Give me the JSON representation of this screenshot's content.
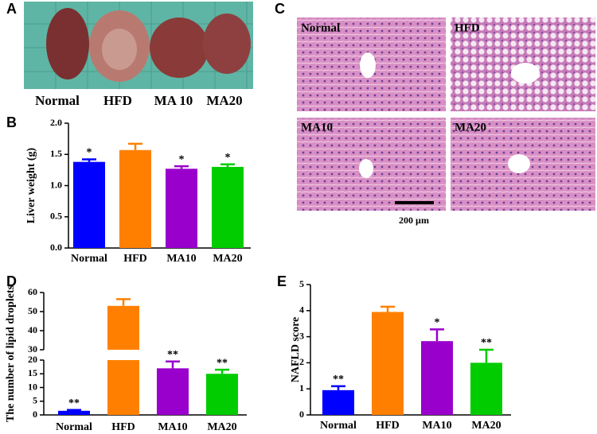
{
  "photo_a": {
    "panel": "A",
    "captions": [
      "Normal",
      "HFD",
      "MA 10",
      "MA20"
    ]
  },
  "micrograph_c": {
    "panel": "C",
    "captions": [
      "Normal",
      "HFD",
      "MA10",
      "MA20"
    ],
    "scale_bar": "200 µm"
  },
  "chart_data": [
    {
      "type": "bar",
      "panel": "B",
      "ylabel": "Liver weight (g)",
      "categories": [
        "Normal",
        "HFD",
        "MA10",
        "MA20"
      ],
      "values": [
        1.38,
        1.57,
        1.27,
        1.3
      ],
      "errors": [
        0.04,
        0.1,
        0.04,
        0.04
      ],
      "annotations": [
        "*",
        null,
        "*",
        "*"
      ],
      "colors": [
        "#0000ff",
        "#ff8000",
        "#9900cc",
        "#00cc00"
      ],
      "ylim": [
        0,
        2
      ],
      "yticks": [
        {
          "value": 0,
          "label": "0.0"
        },
        {
          "value": 0.5,
          "label": "0.5"
        },
        {
          "value": 1,
          "label": "1.0"
        },
        {
          "value": 1.5,
          "label": "1.5"
        },
        {
          "value": 2,
          "label": "2.0"
        }
      ]
    },
    {
      "type": "bar",
      "panel": "D",
      "ylabel": "The number of lipid droplets",
      "categories": [
        "Normal",
        "HFD",
        "MA10",
        "MA20"
      ],
      "values": [
        1.5,
        53,
        17,
        15
      ],
      "errors": [
        0.3,
        3.5,
        2.5,
        1.5
      ],
      "annotations": [
        "**",
        null,
        "**",
        "**"
      ],
      "colors": [
        "#0000ff",
        "#ff8000",
        "#9900cc",
        "#00cc00"
      ],
      "ylim": [
        0,
        60
      ],
      "axis_break": [
        20,
        30
      ],
      "yticks": [
        0,
        5,
        10,
        15,
        20,
        30,
        40,
        50,
        60
      ]
    },
    {
      "type": "bar",
      "panel": "E",
      "ylabel": "NAFLD score",
      "categories": [
        "Normal",
        "HFD",
        "MA10",
        "MA20"
      ],
      "values": [
        0.95,
        3.95,
        2.83,
        2.0
      ],
      "errors": [
        0.15,
        0.2,
        0.45,
        0.5
      ],
      "annotations": [
        "**",
        null,
        "*",
        "**"
      ],
      "colors": [
        "#0000ff",
        "#ff8000",
        "#9900cc",
        "#00cc00"
      ],
      "ylim": [
        0,
        5
      ],
      "yticks": [
        0,
        1,
        2,
        3,
        4,
        5
      ]
    }
  ]
}
